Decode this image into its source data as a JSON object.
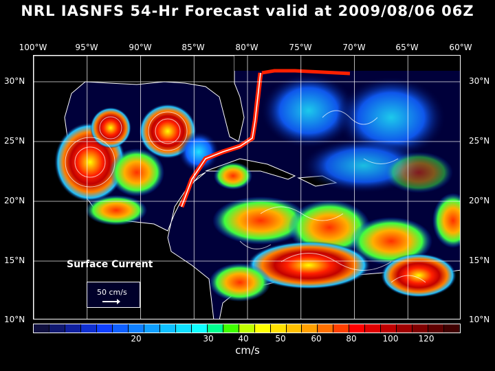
{
  "title": "NRL IASNFS  54-Hr Forecast valid at 2009/08/06 06Z",
  "longitude_labels": [
    "100°W",
    "95°W",
    "90°W",
    "85°W",
    "80°W",
    "75°W",
    "70°W",
    "65°W",
    "60°W"
  ],
  "latitude_labels": [
    "30°N",
    "25°N",
    "20°N",
    "15°N",
    "10°N"
  ],
  "map": {
    "field": "Surface Current",
    "scale_label": "50 cm/s",
    "lon_range": [
      -100,
      -60
    ],
    "lat_range": [
      10,
      31.5
    ]
  },
  "colorbar": {
    "units": "cm/s",
    "tick_labels": [
      "20",
      "30",
      "40",
      "50",
      "60",
      "80",
      "100",
      "120"
    ],
    "colors": [
      "#101040",
      "#101870",
      "#1020a0",
      "#1030d0",
      "#1040ff",
      "#1060ff",
      "#1080ff",
      "#10a0ff",
      "#10c0ff",
      "#10e0ff",
      "#10ffff",
      "#00ff90",
      "#40ff00",
      "#c0ff00",
      "#ffff00",
      "#ffe000",
      "#ffc000",
      "#ffa000",
      "#ff7000",
      "#ff4000",
      "#ff0000",
      "#e00000",
      "#c00000",
      "#a00000",
      "#800000",
      "#600000",
      "#400000"
    ]
  }
}
